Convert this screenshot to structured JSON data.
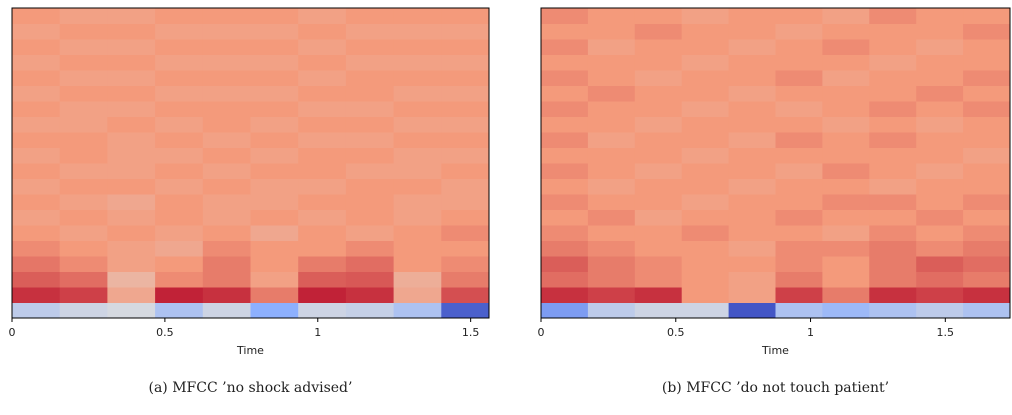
{
  "chart_data": [
    {
      "type": "heatmap",
      "xlabel": "Time",
      "caption": "(a)  MFCC ’no shock advised’",
      "xlim": [
        0,
        1.56
      ],
      "xticks": [
        0,
        0.5,
        1,
        1.5
      ],
      "zlim": [
        -1,
        1
      ],
      "colors": [
        "#3b4cc0",
        "#8db0fe",
        "#dddddd",
        "#f49a7b",
        "#b40426"
      ],
      "z": [
        [
          -0.2,
          -0.1,
          -0.05,
          -0.3,
          -0.1,
          -0.5,
          -0.1,
          -0.15,
          -0.3,
          -0.9
        ],
        [
          0.85,
          0.8,
          0.4,
          0.9,
          0.85,
          0.6,
          0.9,
          0.85,
          0.4,
          0.75
        ],
        [
          0.7,
          0.65,
          0.3,
          0.55,
          0.6,
          0.45,
          0.7,
          0.72,
          0.35,
          0.6
        ],
        [
          0.62,
          0.55,
          0.45,
          0.5,
          0.6,
          0.5,
          0.6,
          0.65,
          0.5,
          0.55
        ],
        [
          0.55,
          0.5,
          0.45,
          0.4,
          0.55,
          0.5,
          0.5,
          0.55,
          0.5,
          0.5
        ],
        [
          0.5,
          0.45,
          0.5,
          0.45,
          0.5,
          0.4,
          0.5,
          0.45,
          0.5,
          0.55
        ],
        [
          0.45,
          0.5,
          0.45,
          0.5,
          0.45,
          0.5,
          0.45,
          0.5,
          0.45,
          0.5
        ],
        [
          0.5,
          0.45,
          0.4,
          0.5,
          0.45,
          0.45,
          0.5,
          0.5,
          0.45,
          0.45
        ],
        [
          0.45,
          0.5,
          0.5,
          0.45,
          0.5,
          0.45,
          0.45,
          0.5,
          0.5,
          0.45
        ],
        [
          0.5,
          0.45,
          0.45,
          0.5,
          0.45,
          0.5,
          0.5,
          0.45,
          0.45,
          0.5
        ],
        [
          0.45,
          0.5,
          0.45,
          0.45,
          0.5,
          0.45,
          0.5,
          0.5,
          0.45,
          0.45
        ],
        [
          0.5,
          0.5,
          0.45,
          0.5,
          0.45,
          0.5,
          0.45,
          0.45,
          0.5,
          0.5
        ],
        [
          0.45,
          0.45,
          0.5,
          0.45,
          0.5,
          0.45,
          0.5,
          0.5,
          0.45,
          0.45
        ],
        [
          0.5,
          0.45,
          0.45,
          0.5,
          0.5,
          0.5,
          0.45,
          0.45,
          0.5,
          0.5
        ],
        [
          0.45,
          0.5,
          0.5,
          0.45,
          0.45,
          0.45,
          0.5,
          0.5,
          0.45,
          0.45
        ],
        [
          0.5,
          0.45,
          0.45,
          0.5,
          0.5,
          0.5,
          0.45,
          0.5,
          0.5,
          0.5
        ],
        [
          0.45,
          0.5,
          0.5,
          0.45,
          0.45,
          0.45,
          0.5,
          0.45,
          0.45,
          0.45
        ],
        [
          0.5,
          0.45,
          0.45,
          0.5,
          0.5,
          0.5,
          0.45,
          0.5,
          0.5,
          0.5
        ],
        [
          0.45,
          0.5,
          0.5,
          0.45,
          0.45,
          0.45,
          0.5,
          0.45,
          0.45,
          0.45
        ],
        [
          0.5,
          0.45,
          0.45,
          0.5,
          0.5,
          0.5,
          0.45,
          0.5,
          0.5,
          0.5
        ]
      ]
    },
    {
      "type": "heatmap",
      "xlabel": "Time",
      "caption": "(b)  MFCC ’do not touch patient’",
      "xlim": [
        0,
        1.74
      ],
      "xticks": [
        0,
        0.5,
        1,
        1.5
      ],
      "zlim": [
        -1,
        1
      ],
      "colors": [
        "#3b4cc0",
        "#8db0fe",
        "#dddddd",
        "#f49a7b",
        "#b40426"
      ],
      "z": [
        [
          -0.6,
          -0.2,
          -0.1,
          -0.1,
          -0.95,
          -0.3,
          -0.4,
          -0.3,
          -0.2,
          -0.3
        ],
        [
          0.85,
          0.8,
          0.85,
          0.5,
          0.45,
          0.8,
          0.6,
          0.85,
          0.8,
          0.85
        ],
        [
          0.65,
          0.6,
          0.55,
          0.5,
          0.45,
          0.6,
          0.5,
          0.6,
          0.65,
          0.6
        ],
        [
          0.7,
          0.6,
          0.55,
          0.5,
          0.5,
          0.55,
          0.5,
          0.6,
          0.7,
          0.65
        ],
        [
          0.6,
          0.55,
          0.5,
          0.5,
          0.45,
          0.55,
          0.55,
          0.6,
          0.55,
          0.6
        ],
        [
          0.55,
          0.5,
          0.5,
          0.55,
          0.5,
          0.5,
          0.45,
          0.55,
          0.5,
          0.55
        ],
        [
          0.5,
          0.55,
          0.45,
          0.5,
          0.5,
          0.55,
          0.5,
          0.5,
          0.55,
          0.5
        ],
        [
          0.55,
          0.5,
          0.5,
          0.45,
          0.5,
          0.5,
          0.55,
          0.55,
          0.5,
          0.55
        ],
        [
          0.5,
          0.45,
          0.5,
          0.5,
          0.45,
          0.5,
          0.5,
          0.45,
          0.5,
          0.5
        ],
        [
          0.55,
          0.5,
          0.45,
          0.5,
          0.5,
          0.45,
          0.55,
          0.5,
          0.45,
          0.5
        ],
        [
          0.5,
          0.5,
          0.5,
          0.45,
          0.5,
          0.5,
          0.5,
          0.5,
          0.5,
          0.45
        ],
        [
          0.55,
          0.45,
          0.5,
          0.5,
          0.45,
          0.55,
          0.5,
          0.55,
          0.5,
          0.5
        ],
        [
          0.5,
          0.5,
          0.45,
          0.5,
          0.5,
          0.5,
          0.45,
          0.5,
          0.45,
          0.5
        ],
        [
          0.55,
          0.5,
          0.5,
          0.45,
          0.5,
          0.45,
          0.5,
          0.55,
          0.5,
          0.55
        ],
        [
          0.5,
          0.55,
          0.5,
          0.5,
          0.45,
          0.5,
          0.5,
          0.5,
          0.55,
          0.5
        ],
        [
          0.55,
          0.5,
          0.45,
          0.5,
          0.5,
          0.55,
          0.45,
          0.5,
          0.5,
          0.55
        ],
        [
          0.5,
          0.5,
          0.5,
          0.45,
          0.5,
          0.5,
          0.5,
          0.45,
          0.5,
          0.5
        ],
        [
          0.55,
          0.45,
          0.5,
          0.5,
          0.45,
          0.5,
          0.55,
          0.5,
          0.45,
          0.5
        ],
        [
          0.5,
          0.5,
          0.55,
          0.5,
          0.5,
          0.45,
          0.5,
          0.5,
          0.5,
          0.55
        ],
        [
          0.55,
          0.5,
          0.5,
          0.45,
          0.5,
          0.5,
          0.45,
          0.55,
          0.5,
          0.5
        ]
      ]
    }
  ]
}
